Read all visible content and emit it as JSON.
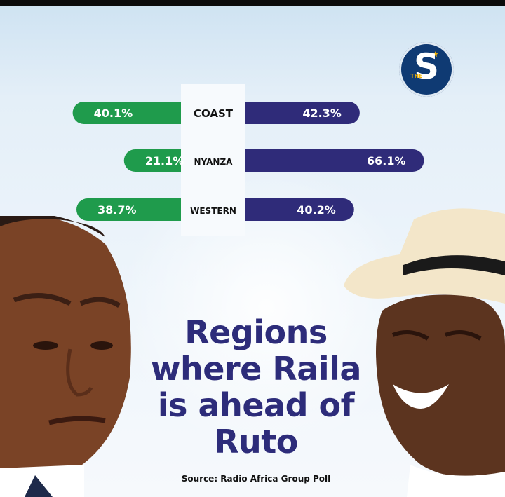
{
  "brand": {
    "logo_letter": "S",
    "logo_small": "THE"
  },
  "headline": {
    "line1": "Regions",
    "line2": "where Raila",
    "line3": "is ahead of",
    "line4": "Ruto"
  },
  "source": "Source: Radio Africa Group Poll",
  "colors": {
    "left_bar": "#1f9b4c",
    "right_bar": "#2f2b79",
    "headline": "#2d2c7a"
  },
  "chart_data": {
    "type": "bar",
    "title": "",
    "categories": [
      "COAST",
      "NYANZA",
      "WESTERN"
    ],
    "series": [
      {
        "values": [
          40.1,
          21.1,
          38.7
        ],
        "color": "#1f9b4c"
      },
      {
        "values": [
          42.3,
          66.1,
          40.2
        ],
        "color": "#2f2b79"
      }
    ],
    "value_labels_left": [
      "40.1%",
      "21.1%",
      "38.7%"
    ],
    "value_labels_right": [
      "42.3%",
      "66.1%",
      "40.2%"
    ],
    "unit": "%"
  }
}
